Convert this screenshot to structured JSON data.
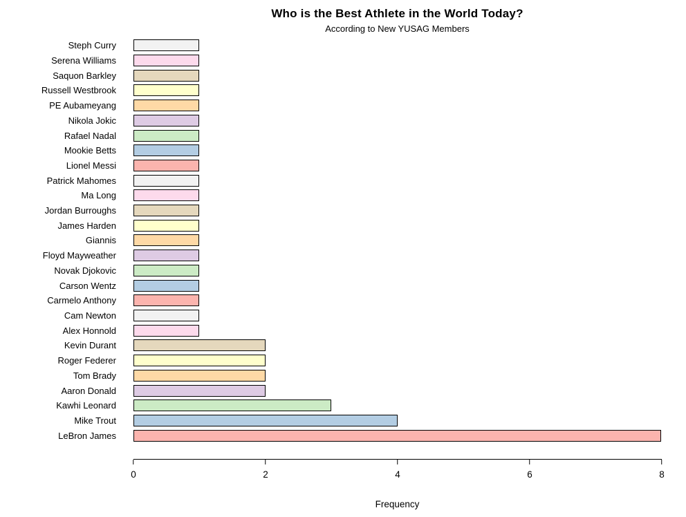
{
  "chart_data": {
    "type": "bar",
    "orientation": "horizontal",
    "title": "Who is the Best Athlete in the World Today?",
    "subtitle": "According to New YUSAG Members",
    "xlabel": "Frequency",
    "ylabel": "",
    "xlim": [
      0,
      8
    ],
    "x_ticks": [
      0,
      2,
      4,
      6,
      8
    ],
    "grid": false,
    "legend": false,
    "bar_border_color": "#000000",
    "palette_name": "Pastel1",
    "bars": [
      {
        "label": "Steph Curry",
        "value": 1,
        "color": "#F2F2F2"
      },
      {
        "label": "Serena Williams",
        "value": 1,
        "color": "#FDDAEC"
      },
      {
        "label": "Saquon Barkley",
        "value": 1,
        "color": "#E5D8BD"
      },
      {
        "label": "Russell Westbrook",
        "value": 1,
        "color": "#FFFFCC"
      },
      {
        "label": "PE Aubameyang",
        "value": 1,
        "color": "#FED9A6"
      },
      {
        "label": "Nikola Jokic",
        "value": 1,
        "color": "#DECBE4"
      },
      {
        "label": "Rafael Nadal",
        "value": 1,
        "color": "#CCEBC5"
      },
      {
        "label": "Mookie Betts",
        "value": 1,
        "color": "#B3CDE3"
      },
      {
        "label": "Lionel Messi",
        "value": 1,
        "color": "#FBB4AE"
      },
      {
        "label": "Patrick Mahomes",
        "value": 1,
        "color": "#F2F2F2"
      },
      {
        "label": "Ma Long",
        "value": 1,
        "color": "#FDDAEC"
      },
      {
        "label": "Jordan Burroughs",
        "value": 1,
        "color": "#E5D8BD"
      },
      {
        "label": "James Harden",
        "value": 1,
        "color": "#FFFFCC"
      },
      {
        "label": "Giannis",
        "value": 1,
        "color": "#FED9A6"
      },
      {
        "label": "Floyd Mayweather",
        "value": 1,
        "color": "#DECBE4"
      },
      {
        "label": "Novak Djokovic",
        "value": 1,
        "color": "#CCEBC5"
      },
      {
        "label": "Carson Wentz",
        "value": 1,
        "color": "#B3CDE3"
      },
      {
        "label": "Carmelo Anthony",
        "value": 1,
        "color": "#FBB4AE"
      },
      {
        "label": "Cam Newton",
        "value": 1,
        "color": "#F2F2F2"
      },
      {
        "label": "Alex Honnold",
        "value": 1,
        "color": "#FDDAEC"
      },
      {
        "label": "Kevin Durant",
        "value": 2,
        "color": "#E5D8BD"
      },
      {
        "label": "Roger Federer",
        "value": 2,
        "color": "#FFFFCC"
      },
      {
        "label": "Tom Brady",
        "value": 2,
        "color": "#FED9A6"
      },
      {
        "label": "Aaron Donald",
        "value": 2,
        "color": "#DECBE4"
      },
      {
        "label": "Kawhi Leonard",
        "value": 3,
        "color": "#CCEBC5"
      },
      {
        "label": "Mike Trout",
        "value": 4,
        "color": "#B3CDE3"
      },
      {
        "label": "LeBron James",
        "value": 8,
        "color": "#FBB4AE"
      }
    ]
  }
}
